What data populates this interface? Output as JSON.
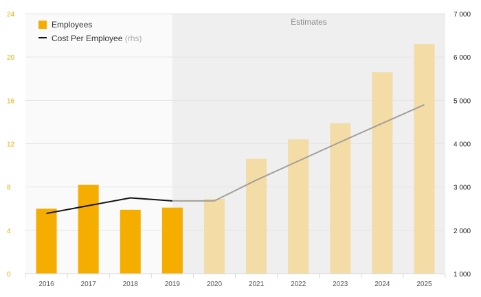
{
  "chart_data": {
    "type": "bar+line",
    "categories": [
      "2016",
      "2017",
      "2018",
      "2019",
      "2020",
      "2021",
      "2022",
      "2023",
      "2024",
      "2025"
    ],
    "series": [
      {
        "name": "Employees",
        "type": "bar",
        "axis": "left",
        "values": [
          6.0,
          8.2,
          5.9,
          6.1,
          6.9,
          10.6,
          12.4,
          13.9,
          18.6,
          21.2
        ],
        "estimate_from_index": 4
      },
      {
        "name": "Cost Per Employee",
        "name_suffix": "(rhs)",
        "type": "line",
        "axis": "right",
        "values": [
          2390,
          2570,
          2750,
          2680,
          2680,
          3160,
          3600,
          4040,
          4470,
          4900
        ],
        "estimate_from_index": 3
      }
    ],
    "left_axis": {
      "min": 0,
      "max": 24,
      "ticks": [
        0,
        4,
        8,
        12,
        16,
        20,
        24
      ]
    },
    "right_axis": {
      "min": 1000,
      "max": 7000,
      "ticks": [
        1000,
        2000,
        3000,
        4000,
        5000,
        6000,
        7000
      ],
      "tick_labels": [
        "1 000",
        "2 000",
        "3 000",
        "4 000",
        "5 000",
        "6 000",
        "7 000"
      ]
    },
    "shaded_region": {
      "label": "Estimates",
      "from_category": "2019.5",
      "to_category": "end"
    },
    "legend_position": "top-left",
    "grid": true,
    "colors": {
      "bar": "#f5ad00",
      "bar_estimate": "#f3dca6",
      "line": "#111111",
      "line_estimate": "#a39f98",
      "estimate_band": "#efefef",
      "plot_bg": "#fafafa",
      "left_axis_text": "#f2a900"
    }
  }
}
